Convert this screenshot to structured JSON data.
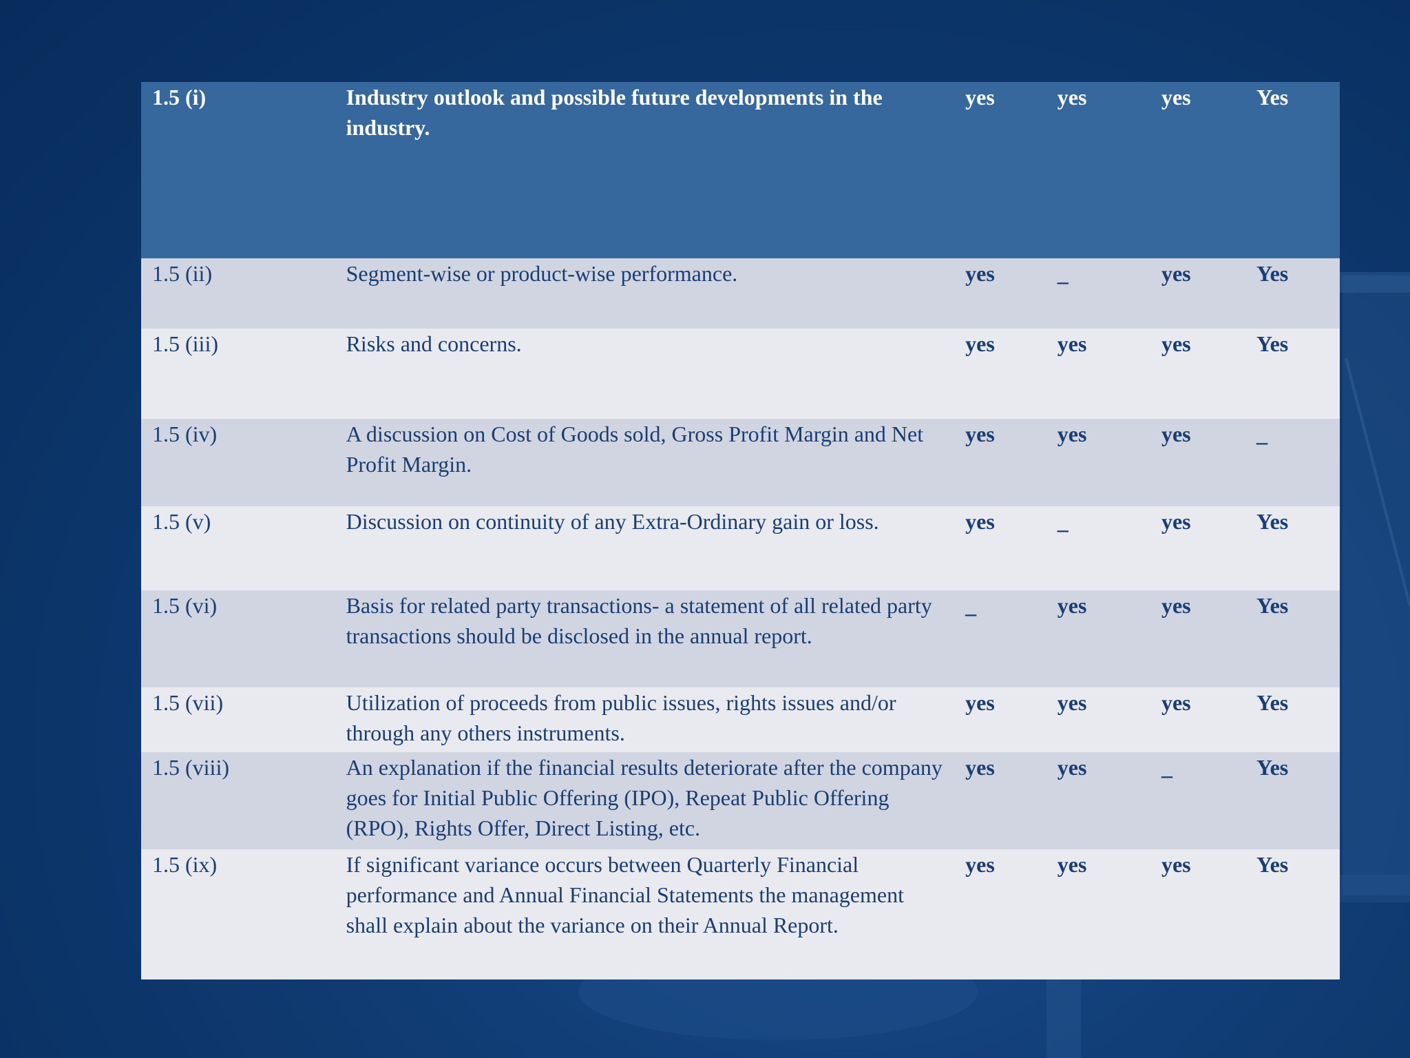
{
  "table": {
    "rows": [
      {
        "code": "1.5 (i)",
        "desc": "Industry outlook and possible future developments in the industry.",
        "a": "yes",
        "b": "yes",
        "c": "yes",
        "d": "Yes"
      },
      {
        "code": "1.5 (ii)",
        "desc": "Segment-wise or product-wise performance.",
        "a": "yes",
        "b": "_",
        "c": "yes",
        "d": "Yes"
      },
      {
        "code": "1.5 (iii)",
        "desc": "Risks and concerns.",
        "a": "yes",
        "b": "yes",
        "c": "yes",
        "d": "Yes"
      },
      {
        "code": "1.5 (iv)",
        "desc": "A discussion on Cost of Goods sold, Gross Profit Margin and Net Profit Margin.",
        "a": "yes",
        "b": "yes",
        "c": "yes",
        "d": "_"
      },
      {
        "code": "1.5 (v)",
        "desc": "Discussion on continuity of any Extra-Ordinary gain or loss.",
        "a": "yes",
        "b": "_",
        "c": "yes",
        "d": "Yes"
      },
      {
        "code": "1.5 (vi)",
        "desc": "Basis for related party transactions- a statement of all related party transactions should be disclosed in the annual report.",
        "a": "_",
        "b": "yes",
        "c": "yes",
        "d": "Yes"
      },
      {
        "code": "1.5 (vii)",
        "desc": "Utilization of proceeds from public issues, rights issues and/or through any others instruments.",
        "a": "yes",
        "b": "yes",
        "c": "yes",
        "d": "Yes"
      },
      {
        "code": "1.5 (viii)",
        "desc": "An explanation if the financial results deteriorate after the company goes for Initial Public Offering (IPO), Repeat Public Offering (RPO), Rights Offer, Direct Listing, etc.",
        "a": "yes",
        "b": "yes",
        "c": "_",
        "d": "Yes"
      },
      {
        "code": "1.5 (ix)",
        "desc": "If significant variance occurs between Quarterly Financial performance and Annual Financial Statements the management shall explain about the variance on their Annual Report.",
        "a": "yes",
        "b": "yes",
        "c": "yes",
        "d": "Yes"
      }
    ]
  },
  "colors": {
    "background": "#0b3468",
    "header_row": "#36679d",
    "row_dark": "#d0d5e1",
    "row_light": "#e9eaef",
    "text": "#1a3e72"
  }
}
